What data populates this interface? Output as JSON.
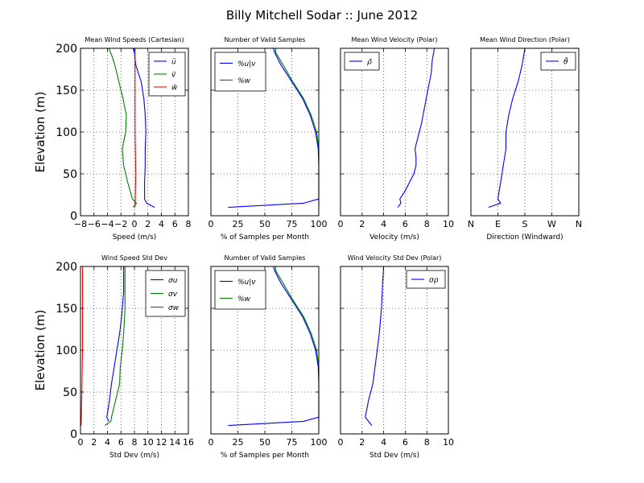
{
  "figure_title": "Billy Mitchell Sodar :: June 2012",
  "colors": {
    "blue": "#0000ff",
    "green": "#008000",
    "red": "#ff0000"
  },
  "chart_data": [
    {
      "type": "line",
      "title": "Mean Wind Speeds (Cartesian)",
      "xlabel": "Speed (m/s)",
      "ylabel": "Elevation (m)",
      "xlim": [
        -8,
        8
      ],
      "ylim": [
        0,
        200
      ],
      "xticks": [
        "−8",
        "−6",
        "−4",
        "−2",
        "0",
        "2",
        "4",
        "6",
        "8"
      ],
      "yticks": [
        "0",
        "50",
        "100",
        "150",
        "200"
      ],
      "grid": true,
      "legend": "top-right",
      "series": [
        {
          "name": "ū",
          "color": "blue",
          "points": [
            [
              3,
              10
            ],
            [
              1.8,
              15
            ],
            [
              1.5,
              20
            ],
            [
              1.5,
              40
            ],
            [
              1.6,
              60
            ],
            [
              1.6,
              80
            ],
            [
              1.7,
              100
            ],
            [
              1.6,
              120
            ],
            [
              1.4,
              140
            ],
            [
              1,
              160
            ],
            [
              0.6,
              170
            ],
            [
              0.2,
              180
            ],
            [
              0,
              195
            ],
            [
              -0.2,
              200
            ]
          ]
        },
        {
          "name": "v̄",
          "color": "green",
          "points": [
            [
              -0.2,
              10
            ],
            [
              0.3,
              15
            ],
            [
              -0.3,
              20
            ],
            [
              -1,
              40
            ],
            [
              -1.6,
              60
            ],
            [
              -1.8,
              80
            ],
            [
              -1.3,
              100
            ],
            [
              -1.2,
              120
            ],
            [
              -1.7,
              140
            ],
            [
              -2.3,
              160
            ],
            [
              -2.9,
              180
            ],
            [
              -3.3,
              190
            ],
            [
              -3.8,
              200
            ]
          ]
        },
        {
          "name": "w̄",
          "color": "red",
          "points": [
            [
              0.1,
              10
            ],
            [
              0.2,
              50
            ],
            [
              0.1,
              100
            ],
            [
              0.1,
              150
            ],
            [
              0.1,
              200
            ]
          ]
        }
      ]
    },
    {
      "type": "line",
      "title": "Number of Valid Samples",
      "xlabel": "% of Samples per Month",
      "xlim": [
        0,
        100
      ],
      "ylim": [
        0,
        200
      ],
      "xticks": [
        "0",
        "25",
        "50",
        "75",
        "100"
      ],
      "yticks": [],
      "grid": true,
      "legend": "top-left",
      "series": [
        {
          "name": "%u|v",
          "color": "blue",
          "points": [
            [
              16,
              10
            ],
            [
              86,
              15
            ],
            [
              100,
              20
            ],
            [
              100,
              40
            ],
            [
              100,
              60
            ],
            [
              99.5,
              80
            ],
            [
              97,
              100
            ],
            [
              92,
              120
            ],
            [
              85,
              140
            ],
            [
              75,
              160
            ],
            [
              65,
              180
            ],
            [
              59,
              195
            ],
            [
              58,
              200
            ]
          ]
        },
        {
          "name": "%w",
          "color": "green",
          "points": [
            [
              100,
              10
            ],
            [
              100,
              20
            ],
            [
              100,
              40
            ],
            [
              100,
              60
            ],
            [
              100,
              80
            ],
            [
              98,
              100
            ],
            [
              93,
              120
            ],
            [
              86,
              140
            ],
            [
              76,
              160
            ],
            [
              67,
              180
            ],
            [
              60,
              195
            ],
            [
              60,
              200
            ]
          ]
        }
      ]
    },
    {
      "type": "line",
      "title": "Mean Wind Velocity (Polar)",
      "xlabel": "Velocity (m/s)",
      "xlim": [
        0,
        10
      ],
      "ylim": [
        0,
        200
      ],
      "xticks": [
        "0",
        "2",
        "4",
        "6",
        "8",
        "10"
      ],
      "yticks": [],
      "grid": true,
      "legend": "top-left",
      "series": [
        {
          "name": "ρ̄",
          "color": "blue",
          "points": [
            [
              5.3,
              10
            ],
            [
              5.6,
              15
            ],
            [
              5.5,
              20
            ],
            [
              6,
              30
            ],
            [
              6.4,
              40
            ],
            [
              6.8,
              50
            ],
            [
              7,
              60
            ],
            [
              7,
              70
            ],
            [
              6.9,
              80
            ],
            [
              7.2,
              95
            ],
            [
              7.5,
              110
            ],
            [
              7.8,
              130
            ],
            [
              8.1,
              150
            ],
            [
              8.4,
              170
            ],
            [
              8.5,
              185
            ],
            [
              8.7,
              200
            ]
          ]
        }
      ]
    },
    {
      "type": "line",
      "title": "Mean Wind Direction (Polar)",
      "xlabel": "Direction (Windward)",
      "xlim": [
        0,
        4
      ],
      "ylim": [
        0,
        200
      ],
      "xticks": [
        "N",
        "E",
        "S",
        "W",
        "N"
      ],
      "yticks": [],
      "grid": true,
      "legend": "top-right",
      "series": [
        {
          "name": "θ̄",
          "color": "blue",
          "points": [
            [
              0.65,
              10
            ],
            [
              1.1,
              15
            ],
            [
              1.0,
              20
            ],
            [
              1.1,
              40
            ],
            [
              1.2,
              60
            ],
            [
              1.3,
              80
            ],
            [
              1.3,
              100
            ],
            [
              1.4,
              120
            ],
            [
              1.55,
              140
            ],
            [
              1.75,
              160
            ],
            [
              1.9,
              180
            ],
            [
              2,
              200
            ]
          ]
        }
      ]
    },
    {
      "type": "line",
      "title": "Wind Speed Std Dev",
      "xlabel": "Std Dev (m/s)",
      "ylabel": "Elevation (m)",
      "xlim": [
        0,
        16
      ],
      "ylim": [
        0,
        200
      ],
      "xticks": [
        "0",
        "2",
        "4",
        "6",
        "8",
        "10",
        "12",
        "14",
        "16"
      ],
      "yticks": [
        "0",
        "50",
        "100",
        "150",
        "200"
      ],
      "grid": true,
      "legend": "top-right",
      "series": [
        {
          "name": "σu",
          "color": "blue",
          "points": [
            [
              4.2,
              15
            ],
            [
              3.9,
              20
            ],
            [
              4.3,
              40
            ],
            [
              4.6,
              60
            ],
            [
              5,
              80
            ],
            [
              5.4,
              100
            ],
            [
              5.8,
              120
            ],
            [
              6.1,
              140
            ],
            [
              6.4,
              170
            ],
            [
              6.4,
              200
            ]
          ]
        },
        {
          "name": "σv",
          "color": "green",
          "points": [
            [
              3.6,
              10
            ],
            [
              4.5,
              15
            ],
            [
              4.6,
              20
            ],
            [
              5.2,
              40
            ],
            [
              5.8,
              60
            ],
            [
              5.9,
              80
            ],
            [
              6.2,
              100
            ],
            [
              6.4,
              120
            ],
            [
              6.6,
              150
            ],
            [
              6.6,
              200
            ]
          ]
        },
        {
          "name": "σw",
          "color": "red",
          "points": [
            [
              0.1,
              10
            ],
            [
              0.2,
              50
            ],
            [
              0.3,
              100
            ],
            [
              0.3,
              150
            ],
            [
              0.3,
              200
            ]
          ]
        }
      ]
    },
    {
      "type": "line",
      "title": "Number of Valid Samples",
      "xlabel": "% of Samples per Month",
      "xlim": [
        0,
        100
      ],
      "ylim": [
        0,
        200
      ],
      "xticks": [
        "0",
        "25",
        "50",
        "75",
        "100"
      ],
      "yticks": [],
      "grid": true,
      "legend": "top-left",
      "series": [
        {
          "name": "%u|v",
          "color": "blue",
          "points": [
            [
              16,
              10
            ],
            [
              86,
              15
            ],
            [
              100,
              20
            ],
            [
              100,
              40
            ],
            [
              100,
              60
            ],
            [
              99.5,
              80
            ],
            [
              97,
              100
            ],
            [
              92,
              120
            ],
            [
              85,
              140
            ],
            [
              75,
              160
            ],
            [
              65,
              180
            ],
            [
              59,
              195
            ],
            [
              58,
              200
            ]
          ]
        },
        {
          "name": "%w",
          "color": "green",
          "points": [
            [
              100,
              10
            ],
            [
              100,
              20
            ],
            [
              100,
              40
            ],
            [
              100,
              60
            ],
            [
              100,
              80
            ],
            [
              98,
              100
            ],
            [
              93,
              120
            ],
            [
              86,
              140
            ],
            [
              76,
              160
            ],
            [
              67,
              180
            ],
            [
              60,
              195
            ],
            [
              60,
              200
            ]
          ]
        }
      ]
    },
    {
      "type": "line",
      "title": "Wind Velocity Std Dev (Polar)",
      "xlabel": "Std Dev (m/s)",
      "xlim": [
        0,
        10
      ],
      "ylim": [
        0,
        200
      ],
      "xticks": [
        "0",
        "2",
        "4",
        "6",
        "8",
        "10"
      ],
      "yticks": [],
      "grid": true,
      "legend": "top-right",
      "series": [
        {
          "name": "σρ",
          "color": "blue",
          "points": [
            [
              2.9,
              10
            ],
            [
              2.6,
              15
            ],
            [
              2.3,
              20
            ],
            [
              2.6,
              40
            ],
            [
              3,
              60
            ],
            [
              3.2,
              80
            ],
            [
              3.4,
              100
            ],
            [
              3.6,
              120
            ],
            [
              3.8,
              150
            ],
            [
              3.9,
              180
            ],
            [
              4,
              200
            ]
          ]
        }
      ]
    }
  ]
}
